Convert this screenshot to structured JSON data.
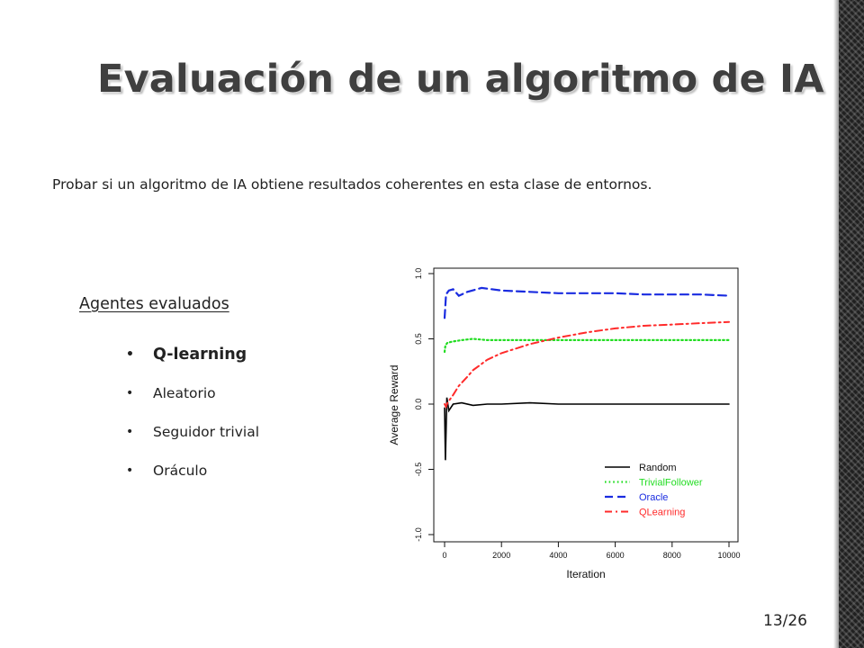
{
  "slide": {
    "title": "Evaluación de un algoritmo de IA",
    "intro": "Probar si un algoritmo de IA obtiene resultados coherentes en esta clase de entornos.",
    "agents_heading": "Agentes evaluados",
    "agents": [
      "Q-learning",
      "Aleatorio",
      "Seguidor trivial",
      "Oráculo"
    ],
    "bullet_icon": "•",
    "page_number": "13/26"
  },
  "chart_data": {
    "type": "line",
    "xlabel": "Iteration",
    "ylabel": "Average Reward",
    "xlim": [
      0,
      10000
    ],
    "ylim": [
      -1.0,
      1.0
    ],
    "xticks": [
      "0",
      "2000",
      "4000",
      "6000",
      "8000",
      "10000"
    ],
    "yticks": [
      "-1.0",
      "-0.5",
      "0.0",
      "0.5",
      "1.0"
    ],
    "grid": false,
    "legend_position": "bottom-right",
    "series": [
      {
        "name": "Random",
        "color": "#000000",
        "style": "solid",
        "points": [
          [
            0,
            -0.03
          ],
          [
            30,
            -0.43
          ],
          [
            80,
            0.05
          ],
          [
            150,
            -0.05
          ],
          [
            300,
            0.0
          ],
          [
            600,
            0.01
          ],
          [
            1000,
            -0.01
          ],
          [
            1500,
            0.0
          ],
          [
            2000,
            0.0
          ],
          [
            3000,
            0.01
          ],
          [
            4000,
            0.0
          ],
          [
            5000,
            0.0
          ],
          [
            6000,
            0.0
          ],
          [
            7000,
            0.0
          ],
          [
            8000,
            0.0
          ],
          [
            9000,
            0.0
          ],
          [
            10000,
            0.0
          ]
        ]
      },
      {
        "name": "TrivialFollower",
        "color": "#22dd22",
        "style": "dotted",
        "points": [
          [
            0,
            0.4
          ],
          [
            30,
            0.45
          ],
          [
            100,
            0.47
          ],
          [
            300,
            0.48
          ],
          [
            600,
            0.49
          ],
          [
            1000,
            0.5
          ],
          [
            1500,
            0.49
          ],
          [
            2000,
            0.49
          ],
          [
            3000,
            0.49
          ],
          [
            5000,
            0.49
          ],
          [
            7000,
            0.49
          ],
          [
            10000,
            0.49
          ]
        ]
      },
      {
        "name": "Oracle",
        "color": "#1a2ce0",
        "style": "dashed",
        "points": [
          [
            0,
            0.66
          ],
          [
            50,
            0.84
          ],
          [
            150,
            0.87
          ],
          [
            300,
            0.88
          ],
          [
            500,
            0.83
          ],
          [
            800,
            0.86
          ],
          [
            1300,
            0.89
          ],
          [
            2000,
            0.87
          ],
          [
            3000,
            0.86
          ],
          [
            4000,
            0.85
          ],
          [
            5000,
            0.85
          ],
          [
            6000,
            0.85
          ],
          [
            7000,
            0.84
          ],
          [
            8000,
            0.84
          ],
          [
            9000,
            0.84
          ],
          [
            10000,
            0.83
          ]
        ]
      },
      {
        "name": "QLearning",
        "color": "#ff2a2a",
        "style": "dashdot",
        "points": [
          [
            0,
            0.0
          ],
          [
            50,
            -0.02
          ],
          [
            100,
            0.01
          ],
          [
            300,
            0.07
          ],
          [
            500,
            0.14
          ],
          [
            800,
            0.21
          ],
          [
            1000,
            0.26
          ],
          [
            1500,
            0.34
          ],
          [
            2000,
            0.39
          ],
          [
            3000,
            0.46
          ],
          [
            4000,
            0.51
          ],
          [
            5000,
            0.55
          ],
          [
            6000,
            0.58
          ],
          [
            7000,
            0.6
          ],
          [
            8000,
            0.61
          ],
          [
            9000,
            0.62
          ],
          [
            10000,
            0.63
          ]
        ]
      }
    ]
  }
}
